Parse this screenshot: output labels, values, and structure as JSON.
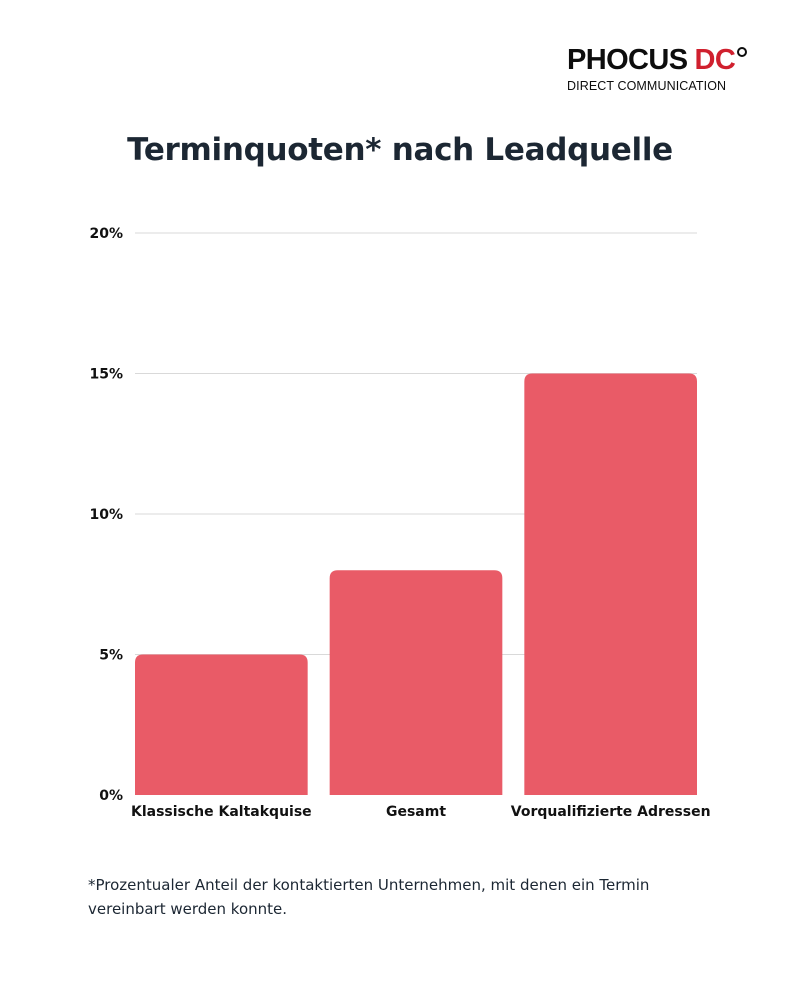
{
  "logo": {
    "word": "PHOCUS",
    "accent": "DC",
    "subtitle": "DIRECT COMMUNICATION"
  },
  "footnote": "*Prozentualer Anteil der kontaktierten Unternehmen, mit denen ein Termin vereinbart werden konnte.",
  "colors": {
    "bar": "#e95b67",
    "title": "#1c2733",
    "brand_accent": "#d0202e",
    "gridline": "#d9d9d9"
  },
  "chart_data": {
    "type": "bar",
    "title": "Terminquoten* nach Leadquelle",
    "categories": [
      "Klassische Kaltakquise",
      "Gesamt",
      "Vorqualifizierte Adressen"
    ],
    "values": [
      5,
      8,
      15
    ],
    "value_unit": "%",
    "ylim": [
      0,
      20
    ],
    "yticks": [
      "0%",
      "5%",
      "10%",
      "15%",
      "20%"
    ],
    "xlabel": "",
    "ylabel": "",
    "grid": true,
    "legend": "none"
  }
}
